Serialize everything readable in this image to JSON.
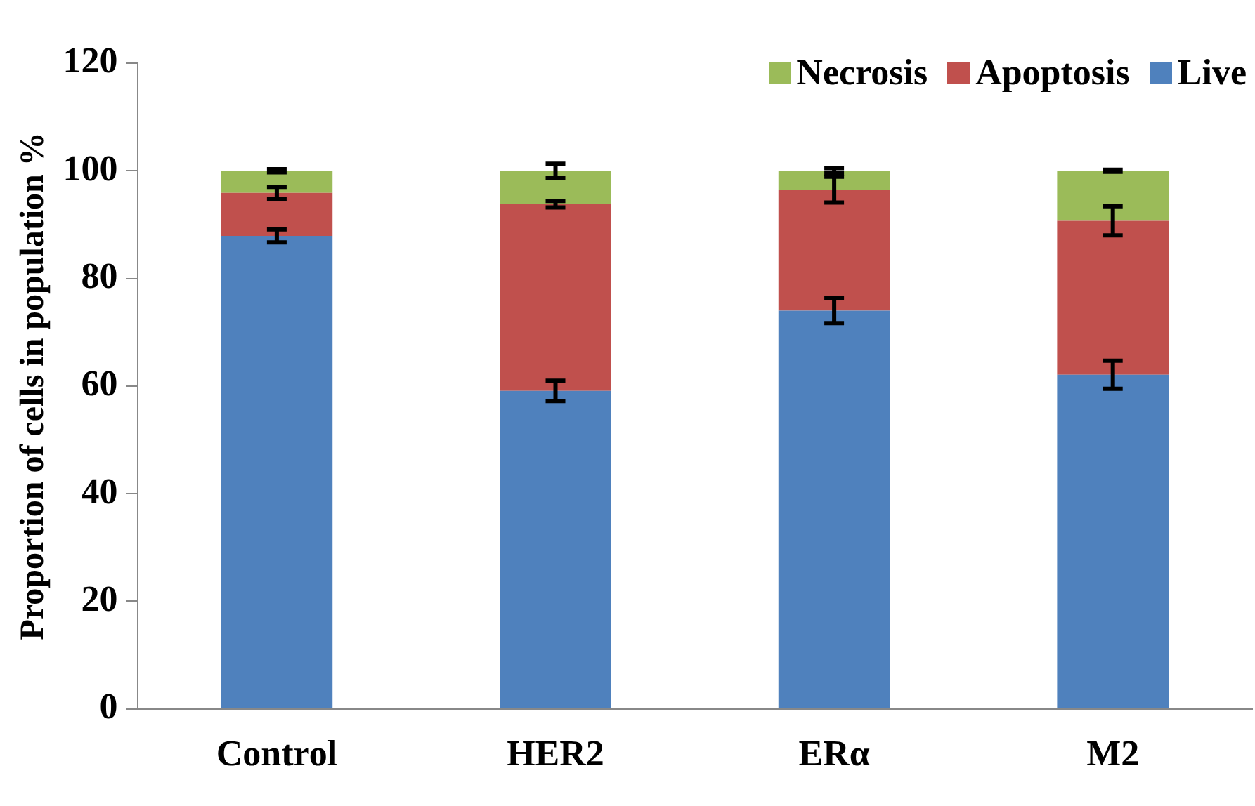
{
  "chart_data": {
    "type": "bar",
    "stacked": true,
    "ylabel": "Proportion of cells in population %",
    "categories": [
      "Control",
      "HER2",
      "ERα",
      "M2"
    ],
    "series": [
      {
        "name": "Live",
        "color": "#4f81bd",
        "values": [
          87.9,
          59.1,
          74.0,
          62.1
        ],
        "errors": [
          1.2,
          1.9,
          2.3,
          2.6
        ]
      },
      {
        "name": "Apoptosis",
        "color": "#c0504d",
        "values": [
          8.0,
          34.7,
          22.5,
          28.6
        ],
        "errors": [
          1.1,
          0.6,
          2.4,
          2.7
        ]
      },
      {
        "name": "Necrosis",
        "color": "#9bbb59",
        "values": [
          4.1,
          6.2,
          3.5,
          9.3
        ],
        "errors": [
          0.3,
          1.3,
          0.5,
          0.2
        ]
      }
    ],
    "ylim": [
      0,
      120
    ],
    "yticks": [
      0,
      20,
      40,
      60,
      80,
      100,
      120
    ],
    "grid": false,
    "legend": "top right"
  }
}
